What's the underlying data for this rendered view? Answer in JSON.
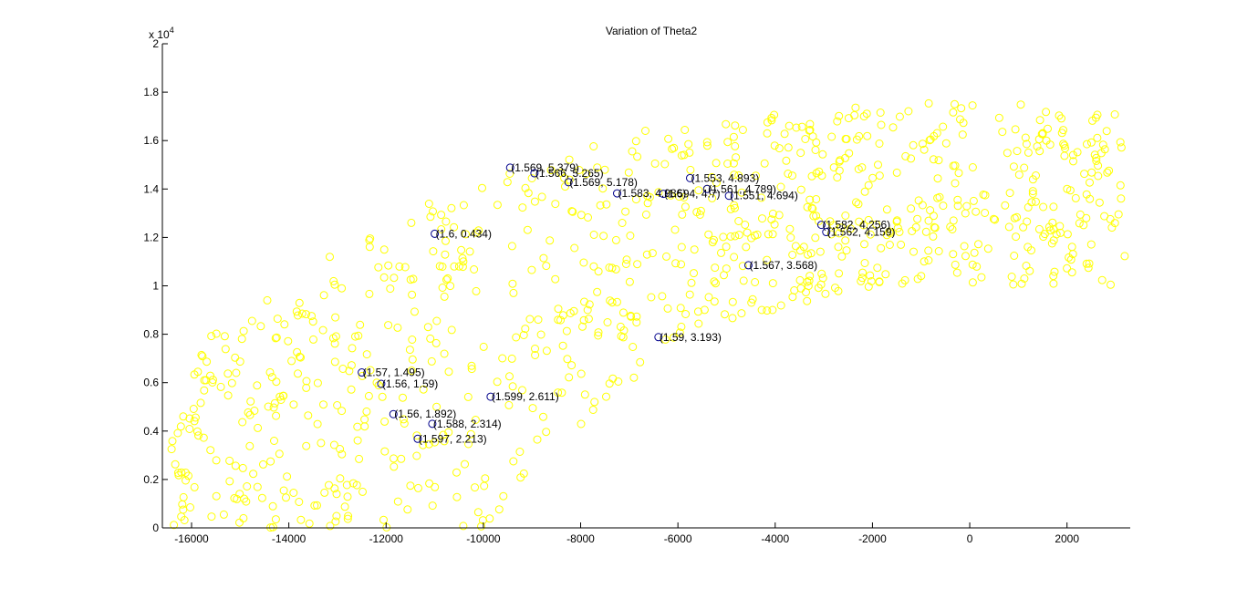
{
  "chart_data": {
    "type": "scatter",
    "title": "Variation of Theta2",
    "xlabel": "",
    "ylabel": "",
    "y_exponent_label": "x 10",
    "y_exponent_power": "4",
    "xlim": [
      -16600,
      3300
    ],
    "ylim": [
      0,
      20000
    ],
    "x_ticks": [
      -16000,
      -14000,
      -12000,
      -10000,
      -8000,
      -6000,
      -4000,
      -2000,
      0,
      2000
    ],
    "x_tick_labels": [
      "-16000",
      "-14000",
      "-12000",
      "-10000",
      "-8000",
      "-6000",
      "-4000",
      "-2000",
      "0",
      "2000"
    ],
    "y_ticks": [
      0,
      2000,
      4000,
      6000,
      8000,
      10000,
      12000,
      14000,
      16000,
      18000,
      20000
    ],
    "y_tick_labels": [
      "0",
      "0.2",
      "0.4",
      "0.6",
      "0.8",
      "1",
      "1.2",
      "1.4",
      "1.6",
      "1.8",
      "2"
    ],
    "grid": false,
    "series": [
      {
        "color": "#ffff00",
        "marker": "circle",
        "generated": true,
        "count": 900
      },
      {
        "color": "#00008b",
        "marker": "circle",
        "points": [
          {
            "x": -9450,
            "y": 14880,
            "label": "(1.569, 5.379)"
          },
          {
            "x": -8950,
            "y": 14650,
            "label": "(1.566, 5.265)"
          },
          {
            "x": -8250,
            "y": 14280,
            "label": "(1.569, 5.178)"
          },
          {
            "x": -7250,
            "y": 13820,
            "label": "(1.583, 4.986)"
          },
          {
            "x": -6300,
            "y": 13800,
            "label": "(1.594, 4.7)"
          },
          {
            "x": -5750,
            "y": 14450,
            "label": "(1.553, 4.893)"
          },
          {
            "x": -5400,
            "y": 14000,
            "label": "(1.561, 4.789)"
          },
          {
            "x": -4950,
            "y": 13720,
            "label": "(1.551, 4.694)"
          },
          {
            "x": -11000,
            "y": 12150,
            "label": "(1.6, 0.434)"
          },
          {
            "x": -3050,
            "y": 12520,
            "label": "(1.582, 4.256)"
          },
          {
            "x": -2950,
            "y": 12220,
            "label": "(1.562, 4.159)"
          },
          {
            "x": -4550,
            "y": 10850,
            "label": "(1.567, 3.568)"
          },
          {
            "x": -6400,
            "y": 7880,
            "label": "(1.59, 3.193)"
          },
          {
            "x": -12500,
            "y": 6420,
            "label": "(1.57, 1.495)"
          },
          {
            "x": -12100,
            "y": 5950,
            "label": "(1.56, 1.59)"
          },
          {
            "x": -9850,
            "y": 5420,
            "label": "(1.599, 2.611)"
          },
          {
            "x": -11850,
            "y": 4700,
            "label": "(1.56, 1.892)"
          },
          {
            "x": -11050,
            "y": 4300,
            "label": "(1.588, 2.314)"
          },
          {
            "x": -11350,
            "y": 3680,
            "label": "(1.597, 2.213)"
          }
        ]
      }
    ]
  }
}
